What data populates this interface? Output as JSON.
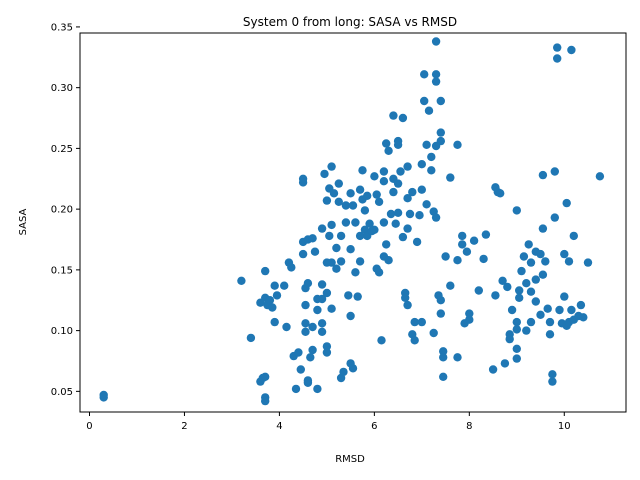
{
  "chart_data": {
    "type": "scatter",
    "title": "System 0 from long: SASA vs RMSD",
    "xlabel": "RMSD",
    "ylabel": "SASA",
    "xlim": [
      -0.2,
      11.3
    ],
    "ylim": [
      0.033,
      0.345
    ],
    "xticks": [
      0,
      2,
      4,
      6,
      8,
      10
    ],
    "yticks": [
      0.05,
      0.1,
      0.15,
      0.2,
      0.25,
      0.3,
      0.35
    ],
    "ytick_labels": [
      "0.05",
      "0.10",
      "0.15",
      "0.20",
      "0.25",
      "0.30",
      "0.35"
    ],
    "grid": false,
    "marker_color": "#1f77b4",
    "series": [
      {
        "points": [
          [
            0.3,
            0.047
          ],
          [
            0.3,
            0.045
          ],
          [
            3.2,
            0.141
          ],
          [
            3.4,
            0.094
          ],
          [
            3.6,
            0.058
          ],
          [
            3.65,
            0.061
          ],
          [
            3.7,
            0.062
          ],
          [
            3.7,
            0.045
          ],
          [
            3.7,
            0.042
          ],
          [
            3.6,
            0.123
          ],
          [
            3.7,
            0.149
          ],
          [
            3.7,
            0.127
          ],
          [
            3.75,
            0.121
          ],
          [
            3.8,
            0.125
          ],
          [
            3.85,
            0.119
          ],
          [
            3.9,
            0.137
          ],
          [
            3.9,
            0.107
          ],
          [
            3.95,
            0.129
          ],
          [
            4.1,
            0.137
          ],
          [
            4.15,
            0.103
          ],
          [
            4.2,
            0.156
          ],
          [
            4.25,
            0.152
          ],
          [
            4.3,
            0.079
          ],
          [
            4.35,
            0.052
          ],
          [
            4.4,
            0.082
          ],
          [
            4.45,
            0.068
          ],
          [
            4.5,
            0.225
          ],
          [
            4.5,
            0.222
          ],
          [
            4.5,
            0.173
          ],
          [
            4.5,
            0.163
          ],
          [
            4.55,
            0.135
          ],
          [
            4.55,
            0.121
          ],
          [
            4.55,
            0.106
          ],
          [
            4.55,
            0.099
          ],
          [
            4.6,
            0.175
          ],
          [
            4.6,
            0.139
          ],
          [
            4.6,
            0.057
          ],
          [
            4.6,
            0.059
          ],
          [
            4.65,
            0.078
          ],
          [
            4.7,
            0.084
          ],
          [
            4.7,
            0.103
          ],
          [
            4.7,
            0.176
          ],
          [
            4.75,
            0.165
          ],
          [
            4.8,
            0.126
          ],
          [
            4.8,
            0.117
          ],
          [
            4.8,
            0.052
          ],
          [
            4.9,
            0.184
          ],
          [
            4.9,
            0.138
          ],
          [
            4.9,
            0.126
          ],
          [
            4.9,
            0.106
          ],
          [
            4.9,
            0.099
          ],
          [
            4.95,
            0.229
          ],
          [
            5.0,
            0.207
          ],
          [
            5.0,
            0.156
          ],
          [
            5.0,
            0.131
          ],
          [
            5.0,
            0.087
          ],
          [
            5.0,
            0.082
          ],
          [
            5.05,
            0.217
          ],
          [
            5.05,
            0.178
          ],
          [
            5.1,
            0.235
          ],
          [
            5.1,
            0.187
          ],
          [
            5.1,
            0.156
          ],
          [
            5.1,
            0.118
          ],
          [
            5.15,
            0.213
          ],
          [
            5.2,
            0.168
          ],
          [
            5.2,
            0.151
          ],
          [
            5.25,
            0.221
          ],
          [
            5.25,
            0.206
          ],
          [
            5.3,
            0.178
          ],
          [
            5.3,
            0.157
          ],
          [
            5.3,
            0.061
          ],
          [
            5.35,
            0.066
          ],
          [
            5.4,
            0.203
          ],
          [
            5.4,
            0.189
          ],
          [
            5.45,
            0.129
          ],
          [
            5.5,
            0.213
          ],
          [
            5.5,
            0.167
          ],
          [
            5.5,
            0.112
          ],
          [
            5.5,
            0.073
          ],
          [
            5.55,
            0.069
          ],
          [
            5.55,
            0.203
          ],
          [
            5.6,
            0.189
          ],
          [
            5.6,
            0.148
          ],
          [
            5.65,
            0.128
          ],
          [
            5.7,
            0.216
          ],
          [
            5.7,
            0.178
          ],
          [
            5.7,
            0.157
          ],
          [
            5.75,
            0.232
          ],
          [
            5.75,
            0.208
          ],
          [
            5.8,
            0.199
          ],
          [
            5.8,
            0.183
          ],
          [
            5.85,
            0.211
          ],
          [
            5.85,
            0.178
          ],
          [
            5.9,
            0.188
          ],
          [
            5.95,
            0.182
          ],
          [
            6.0,
            0.227
          ],
          [
            6.0,
            0.183
          ],
          [
            6.05,
            0.212
          ],
          [
            6.05,
            0.151
          ],
          [
            6.1,
            0.206
          ],
          [
            6.1,
            0.148
          ],
          [
            6.15,
            0.092
          ],
          [
            6.2,
            0.231
          ],
          [
            6.2,
            0.223
          ],
          [
            6.2,
            0.189
          ],
          [
            6.2,
            0.161
          ],
          [
            6.25,
            0.254
          ],
          [
            6.25,
            0.171
          ],
          [
            6.3,
            0.248
          ],
          [
            6.3,
            0.158
          ],
          [
            6.35,
            0.196
          ],
          [
            6.4,
            0.277
          ],
          [
            6.4,
            0.225
          ],
          [
            6.4,
            0.214
          ],
          [
            6.45,
            0.188
          ],
          [
            6.5,
            0.256
          ],
          [
            6.5,
            0.253
          ],
          [
            6.5,
            0.221
          ],
          [
            6.5,
            0.197
          ],
          [
            6.55,
            0.231
          ],
          [
            6.6,
            0.275
          ],
          [
            6.6,
            0.177
          ],
          [
            6.65,
            0.131
          ],
          [
            6.65,
            0.127
          ],
          [
            6.7,
            0.235
          ],
          [
            6.7,
            0.209
          ],
          [
            6.7,
            0.184
          ],
          [
            6.7,
            0.121
          ],
          [
            6.75,
            0.196
          ],
          [
            6.8,
            0.214
          ],
          [
            6.8,
            0.097
          ],
          [
            6.85,
            0.107
          ],
          [
            6.85,
            0.092
          ],
          [
            6.9,
            0.173
          ],
          [
            6.95,
            0.195
          ],
          [
            7.0,
            0.237
          ],
          [
            7.0,
            0.216
          ],
          [
            7.0,
            0.107
          ],
          [
            7.05,
            0.311
          ],
          [
            7.05,
            0.289
          ],
          [
            7.1,
            0.253
          ],
          [
            7.1,
            0.204
          ],
          [
            7.15,
            0.281
          ],
          [
            7.2,
            0.243
          ],
          [
            7.2,
            0.232
          ],
          [
            7.25,
            0.198
          ],
          [
            7.25,
            0.098
          ],
          [
            7.3,
            0.338
          ],
          [
            7.3,
            0.311
          ],
          [
            7.3,
            0.305
          ],
          [
            7.3,
            0.252
          ],
          [
            7.3,
            0.193
          ],
          [
            7.35,
            0.129
          ],
          [
            7.4,
            0.263
          ],
          [
            7.4,
            0.256
          ],
          [
            7.4,
            0.289
          ],
          [
            7.4,
            0.125
          ],
          [
            7.4,
            0.114
          ],
          [
            7.45,
            0.083
          ],
          [
            7.45,
            0.078
          ],
          [
            7.45,
            0.062
          ],
          [
            7.5,
            0.161
          ],
          [
            7.6,
            0.226
          ],
          [
            7.6,
            0.137
          ],
          [
            7.75,
            0.253
          ],
          [
            7.75,
            0.158
          ],
          [
            7.75,
            0.078
          ],
          [
            7.85,
            0.178
          ],
          [
            7.85,
            0.171
          ],
          [
            7.9,
            0.106
          ],
          [
            7.95,
            0.165
          ],
          [
            8.0,
            0.114
          ],
          [
            8.0,
            0.109
          ],
          [
            8.1,
            0.174
          ],
          [
            8.2,
            0.133
          ],
          [
            8.3,
            0.159
          ],
          [
            8.35,
            0.179
          ],
          [
            8.5,
            0.068
          ],
          [
            8.55,
            0.218
          ],
          [
            8.55,
            0.129
          ],
          [
            8.6,
            0.214
          ],
          [
            8.65,
            0.213
          ],
          [
            8.7,
            0.141
          ],
          [
            8.75,
            0.073
          ],
          [
            8.8,
            0.136
          ],
          [
            8.85,
            0.097
          ],
          [
            8.85,
            0.093
          ],
          [
            8.9,
            0.117
          ],
          [
            9.0,
            0.199
          ],
          [
            9.0,
            0.107
          ],
          [
            9.0,
            0.101
          ],
          [
            9.0,
            0.085
          ],
          [
            9.0,
            0.077
          ],
          [
            9.05,
            0.133
          ],
          [
            9.05,
            0.127
          ],
          [
            9.1,
            0.149
          ],
          [
            9.15,
            0.161
          ],
          [
            9.2,
            0.139
          ],
          [
            9.2,
            0.1
          ],
          [
            9.25,
            0.171
          ],
          [
            9.3,
            0.156
          ],
          [
            9.3,
            0.132
          ],
          [
            9.3,
            0.107
          ],
          [
            9.4,
            0.165
          ],
          [
            9.4,
            0.142
          ],
          [
            9.4,
            0.124
          ],
          [
            9.5,
            0.163
          ],
          [
            9.5,
            0.113
          ],
          [
            9.55,
            0.228
          ],
          [
            9.55,
            0.184
          ],
          [
            9.55,
            0.146
          ],
          [
            9.6,
            0.157
          ],
          [
            9.65,
            0.118
          ],
          [
            9.7,
            0.107
          ],
          [
            9.7,
            0.097
          ],
          [
            9.75,
            0.064
          ],
          [
            9.75,
            0.058
          ],
          [
            9.8,
            0.231
          ],
          [
            9.8,
            0.193
          ],
          [
            9.85,
            0.333
          ],
          [
            9.85,
            0.324
          ],
          [
            9.9,
            0.117
          ],
          [
            9.95,
            0.106
          ],
          [
            10.0,
            0.163
          ],
          [
            10.0,
            0.128
          ],
          [
            10.05,
            0.205
          ],
          [
            10.05,
            0.104
          ],
          [
            10.1,
            0.157
          ],
          [
            10.1,
            0.107
          ],
          [
            10.15,
            0.331
          ],
          [
            10.15,
            0.117
          ],
          [
            10.2,
            0.178
          ],
          [
            10.2,
            0.109
          ],
          [
            10.3,
            0.112
          ],
          [
            10.35,
            0.121
          ],
          [
            10.4,
            0.111
          ],
          [
            10.5,
            0.156
          ],
          [
            10.75,
            0.227
          ]
        ]
      }
    ]
  }
}
